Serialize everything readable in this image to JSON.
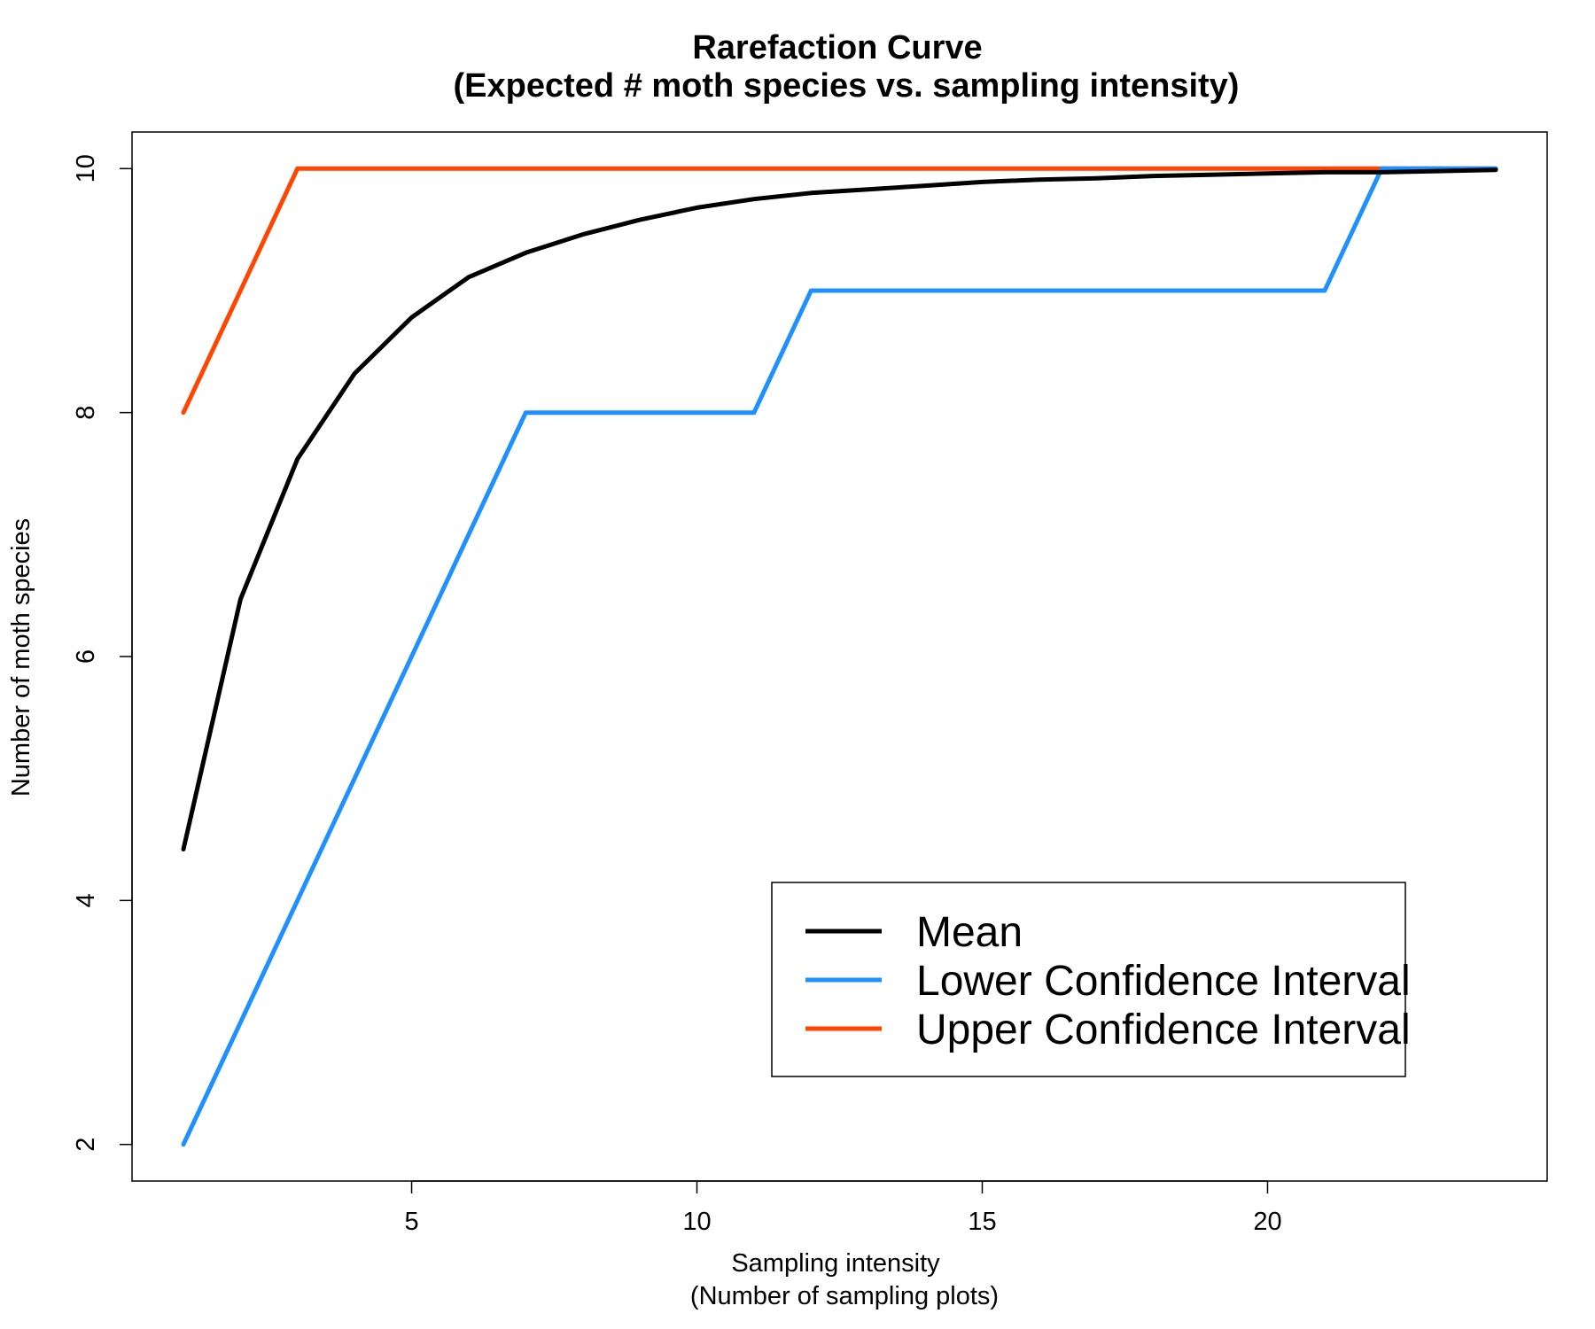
{
  "chart_data": {
    "type": "line",
    "title": "Rarefaction Curve",
    "subtitle": "(Expected # moth species vs. sampling intensity)",
    "xlabel": "Sampling intensity",
    "xlabel2": "(Number of sampling plots)",
    "ylabel": "Number of moth species",
    "xlim": [
      0.1,
      24.9
    ],
    "ylim": [
      1.7,
      10.3
    ],
    "xticks": [
      5,
      10,
      15,
      20
    ],
    "yticks": [
      2,
      4,
      6,
      8,
      10
    ],
    "grid": false,
    "legend_position": "bottom-right",
    "x": [
      1,
      2,
      3,
      4,
      5,
      6,
      7,
      8,
      9,
      10,
      11,
      12,
      13,
      14,
      15,
      16,
      17,
      18,
      19,
      20,
      21,
      22,
      23,
      24
    ],
    "series": [
      {
        "name": "Mean",
        "color": "#000000",
        "values": [
          4.42,
          6.47,
          7.62,
          8.32,
          8.78,
          9.11,
          9.31,
          9.46,
          9.58,
          9.68,
          9.75,
          9.8,
          9.83,
          9.86,
          9.89,
          9.91,
          9.92,
          9.94,
          9.95,
          9.96,
          9.97,
          9.97,
          9.98,
          9.99
        ]
      },
      {
        "name": "Lower Confidence Interval",
        "color": "#1E90FF",
        "values": [
          2,
          3,
          4,
          5,
          6,
          7,
          8,
          8,
          8,
          8,
          8,
          9,
          9,
          9,
          9,
          9,
          9,
          9,
          9,
          9,
          9,
          10,
          10,
          10
        ]
      },
      {
        "name": "Upper Confidence Interval",
        "color": "#FF4500",
        "values": [
          8,
          9,
          10,
          10,
          10,
          10,
          10,
          10,
          10,
          10,
          10,
          10,
          10,
          10,
          10,
          10,
          10,
          10,
          10,
          10,
          10,
          10,
          10,
          10
        ]
      }
    ]
  }
}
